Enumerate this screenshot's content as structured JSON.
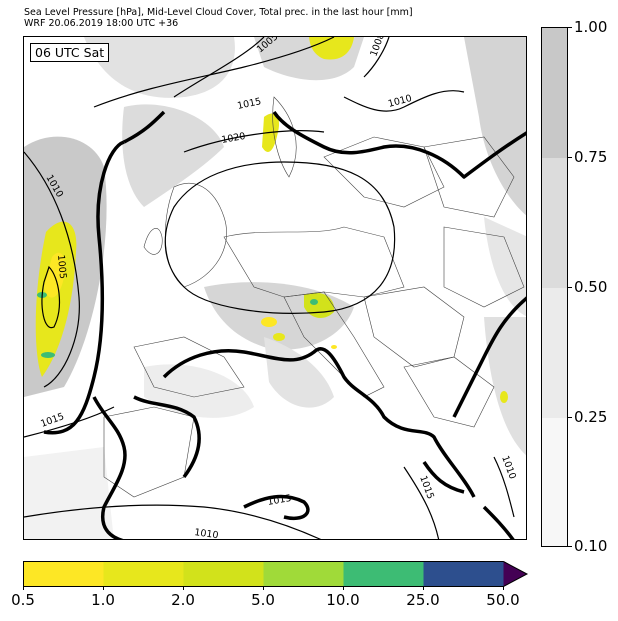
{
  "title": {
    "line1": "Sea Level Pressure [hPa], Mid-Level Cloud Cover, Total prec. in the last hour [mm]",
    "line2": "WRF 20.06.2019 18:00 UTC +36"
  },
  "valid_time": "06 UTC Sat",
  "isobar_labels": [
    "1005",
    "1008",
    "1010",
    "1015",
    "1020",
    "1010",
    "1005",
    "1015",
    "1015",
    "1010",
    "1015",
    "1010"
  ],
  "cloud_colorbar": {
    "ticks": [
      "1.00",
      "0.75",
      "0.50",
      "0.25",
      "0.10"
    ],
    "colors": [
      "#c8c8c8",
      "#dcdcdc",
      "#ebebeb",
      "#f7f7f7"
    ]
  },
  "precip_colorbar": {
    "ticks": [
      "0.5",
      "1.0",
      "2.0",
      "5.0",
      "10.0",
      "25.0",
      "50.0"
    ],
    "colors": [
      "#fde725",
      "#e7e71c",
      "#d2e21b",
      "#a0da39",
      "#3dbc74",
      "#2d4f8e",
      "#440154"
    ]
  }
}
